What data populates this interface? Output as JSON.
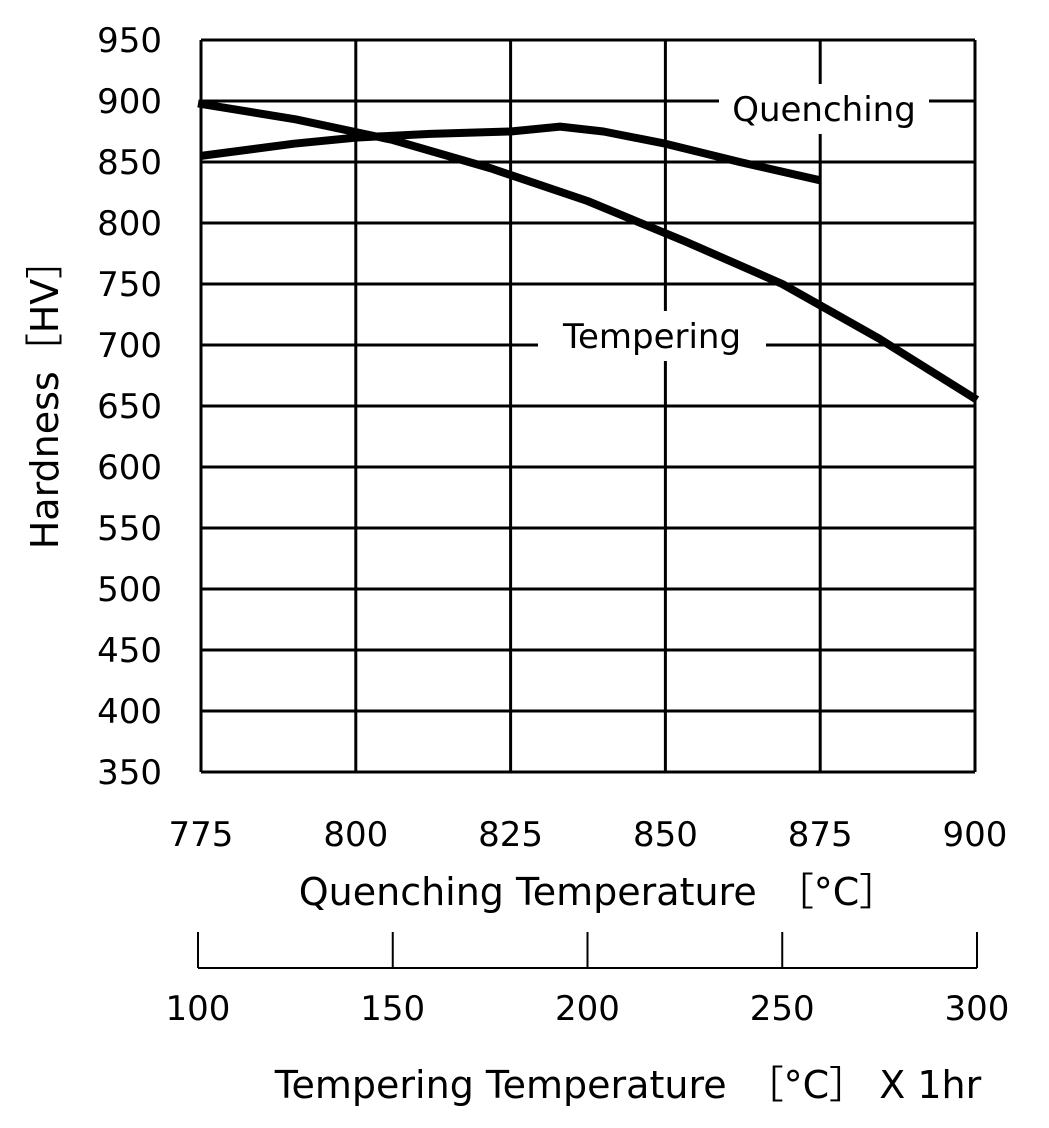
{
  "chart_data": {
    "type": "line",
    "title": "",
    "ylabel": "Hardness［HV］",
    "xlabel": "Quenching Temperature　［°C］",
    "x2label": "Tempering Temperature　［°C］ X 1hr",
    "ylim": [
      350,
      950
    ],
    "xlim": [
      775,
      900
    ],
    "x2lim": [
      100,
      300
    ],
    "yticks": [
      950,
      900,
      850,
      800,
      750,
      700,
      650,
      600,
      550,
      500,
      450,
      400,
      350
    ],
    "xticks": [
      775,
      800,
      825,
      850,
      875,
      900
    ],
    "x2ticks": [
      100,
      150,
      200,
      250,
      300
    ],
    "grid": true,
    "series": [
      {
        "name": "Quenching",
        "axis": "quenching",
        "x": [
          775,
          790,
          800,
          812,
          825,
          833,
          840,
          850,
          862,
          875
        ],
        "y": [
          855,
          865,
          870,
          873,
          875,
          879,
          875,
          865,
          850,
          835
        ]
      },
      {
        "name": "Tempering",
        "axis": "tempering",
        "x": [
          100,
          125,
          150,
          175,
          200,
          225,
          250,
          275,
          300
        ],
        "y": [
          898,
          885,
          868,
          845,
          818,
          785,
          750,
          705,
          655
        ]
      }
    ]
  }
}
